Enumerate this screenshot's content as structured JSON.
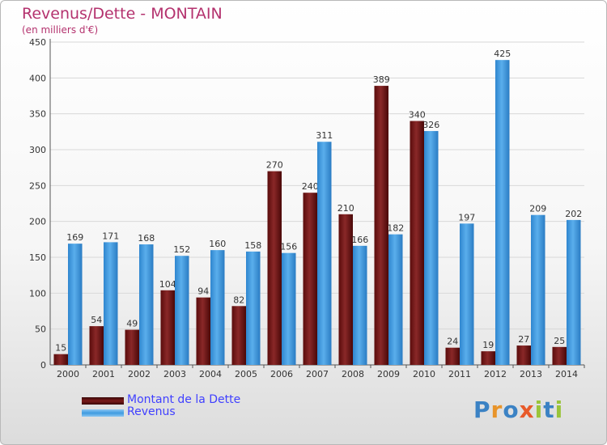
{
  "chart_data": {
    "type": "bar",
    "title": "Revenus/Dette - MONTAIN",
    "subtitle": "(en milliers d'€)",
    "categories": [
      "2000",
      "2001",
      "2002",
      "2003",
      "2004",
      "2005",
      "2006",
      "2007",
      "2008",
      "2009",
      "2010",
      "2011",
      "2012",
      "2013",
      "2014"
    ],
    "series": [
      {
        "name": "Montant de la Dette",
        "color": "#7a1a1a",
        "values": [
          15,
          54,
          49,
          104,
          94,
          82,
          270,
          240,
          210,
          389,
          340,
          24,
          19,
          27,
          25
        ]
      },
      {
        "name": "Revenus",
        "color": "#3f9be0",
        "values": [
          169,
          171,
          168,
          152,
          160,
          158,
          156,
          311,
          166,
          182,
          326,
          197,
          425,
          209,
          202
        ]
      }
    ],
    "ylim": [
      0,
      450
    ],
    "yticks": [
      0,
      50,
      100,
      150,
      200,
      250,
      300,
      350,
      400,
      450
    ],
    "grid": true,
    "legend_position": "bottom-left"
  },
  "branding": {
    "logo": "Proxiti"
  }
}
